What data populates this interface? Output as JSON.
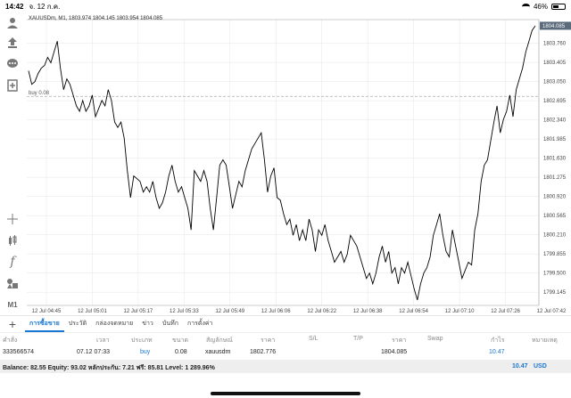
{
  "status": {
    "time": "14:42",
    "date": "จ. 12 ก.ค.",
    "battery": "46%"
  },
  "chart": {
    "header": "XAUUSDm, M1, 1803.974 1804.145 1803.954 1804.085",
    "order_line_label": "buy 0.08",
    "current_price": "1804.085",
    "y_ticks": [
      "1803.760",
      "1803.405",
      "1803.050",
      "1802.695",
      "1802.340",
      "1801.985",
      "1801.630",
      "1801.275",
      "1800.920",
      "1800.565",
      "1800.210",
      "1799.855",
      "1799.500",
      "1799.145"
    ],
    "x_ticks": [
      "12 Jul 04:45",
      "12 Jul 05:01",
      "12 Jul 05:17",
      "12 Jul 05:33",
      "12 Jul 05:49",
      "12 Jul 06:06",
      "12 Jul 06:22",
      "12 Jul 06:38",
      "12 Jul 06:54",
      "12 Jul 07:10",
      "12 Jul 07:26",
      "12 Jul 07:42"
    ]
  },
  "chart_data": {
    "type": "line",
    "title": "XAUUSDm, M1",
    "ylim": [
      1798.9,
      1804.2
    ],
    "x_count": 160,
    "values": [
      1803.25,
      1803.0,
      1803.05,
      1803.2,
      1803.3,
      1803.35,
      1803.5,
      1803.4,
      1803.6,
      1803.8,
      1803.3,
      1802.9,
      1803.1,
      1803.0,
      1802.8,
      1802.6,
      1802.5,
      1802.7,
      1802.5,
      1802.6,
      1802.8,
      1802.4,
      1802.55,
      1802.7,
      1802.6,
      1802.9,
      1802.7,
      1802.3,
      1802.2,
      1802.3,
      1802.0,
      1801.4,
      1800.9,
      1801.3,
      1801.25,
      1801.2,
      1801.0,
      1801.1,
      1801.0,
      1801.2,
      1800.9,
      1800.7,
      1800.8,
      1801.0,
      1801.3,
      1801.5,
      1801.2,
      1801.0,
      1801.1,
      1800.9,
      1800.7,
      1800.3,
      1801.4,
      1801.3,
      1801.2,
      1801.4,
      1801.2,
      1800.7,
      1800.3,
      1800.9,
      1801.5,
      1801.6,
      1801.5,
      1801.1,
      1800.7,
      1800.95,
      1801.2,
      1801.1,
      1801.4,
      1801.6,
      1801.8,
      1801.9,
      1802.0,
      1802.1,
      1801.6,
      1801.0,
      1801.3,
      1801.45,
      1800.9,
      1800.85,
      1800.6,
      1800.4,
      1800.5,
      1800.2,
      1800.4,
      1800.1,
      1800.3,
      1800.1,
      1800.5,
      1800.3,
      1799.9,
      1800.3,
      1800.2,
      1800.4,
      1800.1,
      1799.9,
      1799.7,
      1799.8,
      1799.9,
      1799.7,
      1799.85,
      1800.2,
      1800.1,
      1800.0,
      1799.8,
      1799.6,
      1799.4,
      1799.5,
      1799.3,
      1799.5,
      1799.8,
      1800.0,
      1799.7,
      1799.9,
      1799.5,
      1799.6,
      1799.3,
      1799.6,
      1799.5,
      1799.7,
      1799.45,
      1799.2,
      1799.0,
      1799.3,
      1799.5,
      1799.6,
      1799.8,
      1800.2,
      1800.4,
      1800.6,
      1800.2,
      1799.9,
      1799.8,
      1800.3,
      1800.0,
      1799.7,
      1799.4,
      1799.55,
      1799.7,
      1799.65,
      1800.3,
      1800.6,
      1801.2,
      1801.5,
      1801.6,
      1801.95,
      1802.3,
      1802.6,
      1802.1,
      1802.35,
      1802.5,
      1802.8,
      1802.4,
      1802.9,
      1803.1,
      1803.3,
      1803.6,
      1803.8,
      1804.0,
      1804.085
    ]
  },
  "tabs": [
    "การซื้อขาย",
    "ประวัติ",
    "กล่องจดหมาย",
    "ข่าว",
    "บันทึก",
    "การตั้งค่า"
  ],
  "columns": [
    "คำสั่ง",
    "เวลา",
    "ประเภท",
    "ขนาด",
    "สัญลักษณ์",
    "ราคา",
    "S/L",
    "T/P",
    "ราคา",
    "Swap",
    "กำไร",
    "หมายเหตุ"
  ],
  "order": {
    "ticket": "333566574",
    "time": "07.12 07:33",
    "type": "buy",
    "volume": "0.08",
    "symbol": "xauusdm",
    "open_price": "1802.776",
    "sl": "",
    "tp": "",
    "price": "1804.085",
    "swap": "",
    "profit": "10.47",
    "comment": ""
  },
  "balance": {
    "text": "Balance: 82.55 Equity: 93.02 หลักประกัน: 7.21 ฟรี: 85.81 Level: 1 289.96%",
    "profit": "10.47",
    "currency": "USD"
  },
  "colors": {
    "accent": "#1976d2",
    "line": "#000000",
    "grid": "#e6e6e6"
  }
}
